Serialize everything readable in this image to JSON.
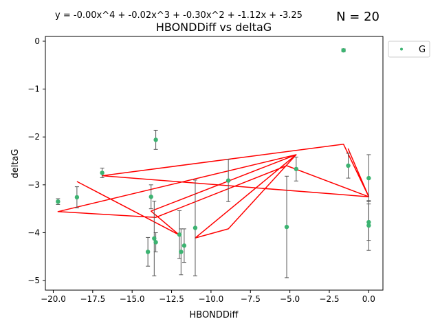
{
  "chart_data": {
    "type": "scatter",
    "title": "HBONDDiff vs deltaG",
    "equation": "y = -0.00x^4 + -0.02x^3 + -0.30x^2 + -1.12x + -3.25",
    "n_label": "N = 20",
    "xlabel": "HBONDDiff",
    "ylabel": "deltaG",
    "xlim": [
      -20.5,
      0.9
    ],
    "ylim": [
      -5.2,
      0.1
    ],
    "x_ticks": [
      -20.0,
      -17.5,
      -15.0,
      -12.5,
      -10.0,
      -7.5,
      -5.0,
      -2.5,
      0.0
    ],
    "x_tick_labels": [
      "−20.0",
      "−17.5",
      "−15.0",
      "−12.5",
      "−10.0",
      "−7.5",
      "−5.0",
      "−2.5",
      "0.0"
    ],
    "y_ticks": [
      0,
      -1,
      -2,
      -3,
      -4,
      -5
    ],
    "y_tick_labels": [
      "0",
      "−1",
      "−2",
      "−3",
      "−4",
      "−5"
    ],
    "legend": {
      "label": "G",
      "position": "outside-top-right"
    },
    "point_color": "#3cb371",
    "errorbar_color": "#555555",
    "fit_color": "#ff0000",
    "points": [
      {
        "x": -19.7,
        "y": -3.35,
        "err": 0.06
      },
      {
        "x": -18.5,
        "y": -3.26,
        "err": 0.22
      },
      {
        "x": -16.9,
        "y": -2.75,
        "err": 0.1
      },
      {
        "x": -14.0,
        "y": -4.4,
        "err": 0.3
      },
      {
        "x": -13.8,
        "y": -3.25,
        "err": 0.25
      },
      {
        "x": -13.6,
        "y": -4.12,
        "err": 0.78
      },
      {
        "x": -13.5,
        "y": -4.2,
        "err": 0.2
      },
      {
        "x": -13.5,
        "y": -2.06,
        "err": 0.2
      },
      {
        "x": -12.0,
        "y": -4.04,
        "err": 0.5
      },
      {
        "x": -11.9,
        "y": -4.4,
        "err": 0.48
      },
      {
        "x": -11.7,
        "y": -4.27,
        "err": 0.35
      },
      {
        "x": -11.0,
        "y": -3.9,
        "err": 1.0
      },
      {
        "x": -8.9,
        "y": -2.91,
        "err": 0.44
      },
      {
        "x": -5.2,
        "y": -3.88,
        "err": 1.06
      },
      {
        "x": -4.6,
        "y": -2.67,
        "err": 0.25
      },
      {
        "x": -1.6,
        "y": -0.19,
        "err": 0.03
      },
      {
        "x": -1.3,
        "y": -2.6,
        "err": 0.26
      },
      {
        "x": 0.0,
        "y": -2.86,
        "err": 0.49
      },
      {
        "x": 0.0,
        "y": -3.78,
        "err": 0.38
      },
      {
        "x": 0.0,
        "y": -3.85,
        "err": 0.52
      }
    ],
    "fit_line": [
      {
        "x": -18.5,
        "y": -2.93
      },
      {
        "x": -12.0,
        "y": -4.05
      },
      {
        "x": -13.8,
        "y": -3.55
      },
      {
        "x": -4.6,
        "y": -2.37
      },
      {
        "x": -11.0,
        "y": -4.11
      },
      {
        "x": -8.9,
        "y": -3.92
      },
      {
        "x": -4.6,
        "y": -2.37
      },
      {
        "x": -19.7,
        "y": -3.56
      },
      {
        "x": -13.5,
        "y": -3.68
      },
      {
        "x": -5.2,
        "y": -2.6
      },
      {
        "x": 0.0,
        "y": -3.25
      },
      {
        "x": -16.9,
        "y": -2.81
      },
      {
        "x": -1.6,
        "y": -2.15
      },
      {
        "x": 0.0,
        "y": -3.25
      },
      {
        "x": -1.3,
        "y": -2.25
      },
      {
        "x": 0.0,
        "y": -3.25
      }
    ]
  }
}
